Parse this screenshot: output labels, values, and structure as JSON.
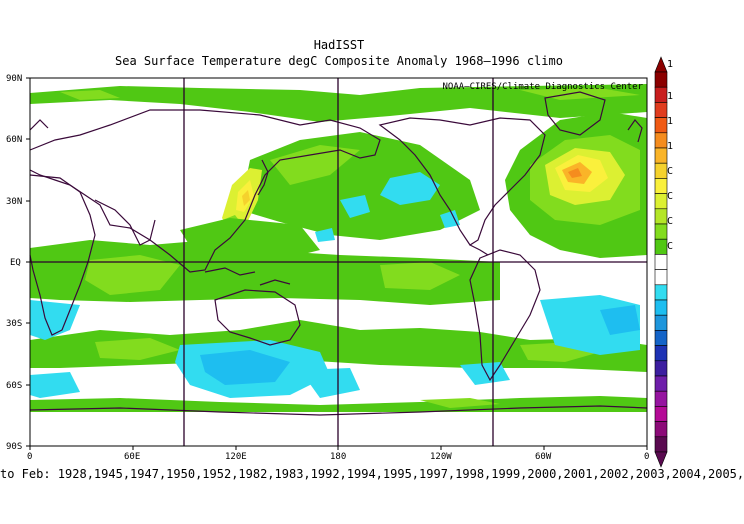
{
  "dataset": "HadISST",
  "subtitle": "Sea Surface Temperature degC Composite Anomaly 1968—1996 climo",
  "credit": "NOAA—CIRES/Climate Diagnostics Center",
  "lat_labels": [
    "90N",
    "60N",
    "30N",
    "EQ",
    "30S",
    "60S",
    "90S"
  ],
  "lon_labels": [
    "0",
    "60E",
    "120E",
    "180",
    "120W",
    "60W",
    "0"
  ],
  "colorbar": {
    "labels": [
      "1",
      "1",
      "1",
      "1",
      "C",
      "C",
      "C",
      "C"
    ],
    "colors": [
      "#8b0000",
      "#c81e1e",
      "#e03c1e",
      "#f05a14",
      "#f58c1e",
      "#fab428",
      "#f5d22d",
      "#faf03c",
      "#dcf032",
      "#b4e628",
      "#82dc1e",
      "#50c814",
      "#ffffff",
      "#ffffff",
      "#32dcf0",
      "#1ebef0",
      "#1e96dc",
      "#1464c8",
      "#1e32b4",
      "#3c1ea0",
      "#6e1eaa",
      "#9614a0",
      "#b40a96",
      "#8c0a78",
      "#5a0a50"
    ],
    "colors_note": "top-to-bottom swatches; arrowheads match end colors"
  },
  "footer_text": "to Feb: 1928,1945,1947,1950,1952,1982,1983,1992,1994,1995,1997,1998,1999,2000,2001,2002,2003,2004,2005,"
}
